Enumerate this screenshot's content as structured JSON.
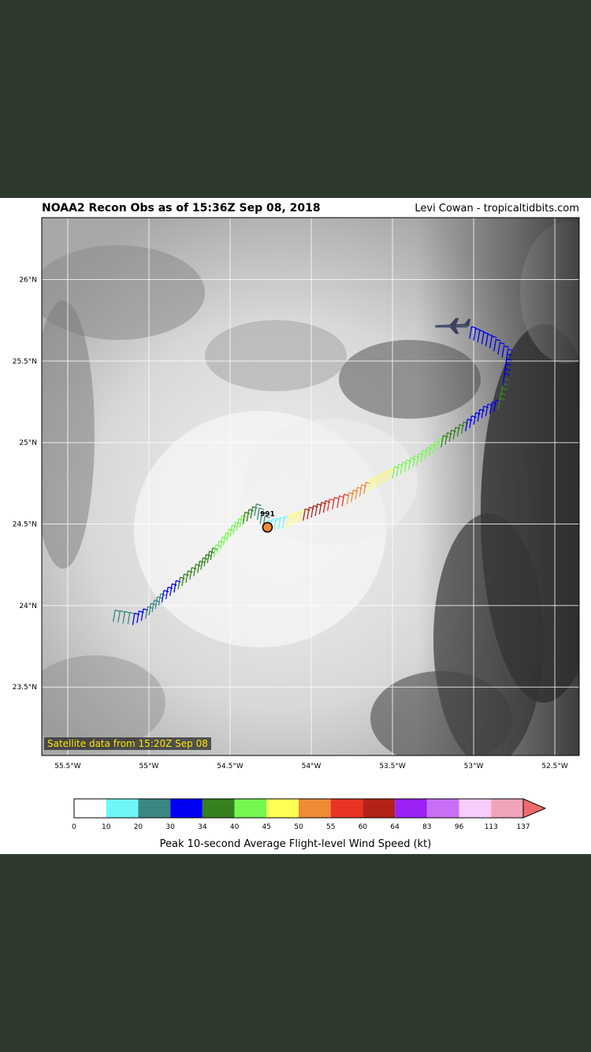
{
  "title": "NOAA2 Recon Obs as of 15:36Z Sep 08, 2018",
  "credit": "Levi Cowan - tropicaltidbits.com",
  "satellite_note": "Satellite data from 15:20Z Sep 08",
  "pressure_label": "991",
  "lat_ticks": [
    "26°N",
    "25.5°N",
    "25°N",
    "24.5°N",
    "24°N",
    "23.5°N"
  ],
  "lon_ticks": [
    "55.5°W",
    "55°W",
    "54.5°W",
    "54°W",
    "53.5°W",
    "53°W",
    "52.5°W"
  ],
  "map": {
    "lon_range": [
      -55.66,
      -52.35
    ],
    "lat_range": [
      23.08,
      26.38
    ],
    "lat_values": [
      26.0,
      25.5,
      25.0,
      24.5,
      24.0,
      23.5
    ],
    "lon_values": [
      -55.5,
      -55.0,
      -54.5,
      -54.0,
      -53.5,
      -53.0,
      -52.5
    ],
    "center": {
      "lon": -54.27,
      "lat": 24.48
    },
    "aircraft": {
      "lon": -53.13,
      "lat": 25.72,
      "icon": "airplane-icon"
    },
    "flight_track": [
      {
        "lon": -55.22,
        "lat": 23.9,
        "kt": 20
      },
      {
        "lon": -55.1,
        "lat": 23.88,
        "kt": 30
      },
      {
        "lon": -55.02,
        "lat": 23.92,
        "kt": 25
      },
      {
        "lon": -54.92,
        "lat": 24.02,
        "kt": 30
      },
      {
        "lon": -54.82,
        "lat": 24.1,
        "kt": 34
      },
      {
        "lon": -54.7,
        "lat": 24.2,
        "kt": 34
      },
      {
        "lon": -54.6,
        "lat": 24.3,
        "kt": 40
      },
      {
        "lon": -54.5,
        "lat": 24.42,
        "kt": 40
      },
      {
        "lon": -54.42,
        "lat": 24.5,
        "kt": 34
      },
      {
        "lon": -54.35,
        "lat": 24.55,
        "kt": 20
      },
      {
        "lon": -54.28,
        "lat": 24.45,
        "kt": 10
      },
      {
        "lon": -54.15,
        "lat": 24.48,
        "kt": 45
      },
      {
        "lon": -54.05,
        "lat": 24.52,
        "kt": 60
      },
      {
        "lon": -53.9,
        "lat": 24.58,
        "kt": 55
      },
      {
        "lon": -53.78,
        "lat": 24.62,
        "kt": 50
      },
      {
        "lon": -53.65,
        "lat": 24.7,
        "kt": 45
      },
      {
        "lon": -53.5,
        "lat": 24.78,
        "kt": 40
      },
      {
        "lon": -53.35,
        "lat": 24.86,
        "kt": 40
      },
      {
        "lon": -53.2,
        "lat": 24.97,
        "kt": 34
      },
      {
        "lon": -53.05,
        "lat": 25.07,
        "kt": 30
      },
      {
        "lon": -52.95,
        "lat": 25.15,
        "kt": 30
      },
      {
        "lon": -52.85,
        "lat": 25.2,
        "kt": 34
      },
      {
        "lon": -52.82,
        "lat": 25.35,
        "kt": 30
      },
      {
        "lon": -52.8,
        "lat": 25.5,
        "kt": 30
      },
      {
        "lon": -52.9,
        "lat": 25.58,
        "kt": 30
      },
      {
        "lon": -53.05,
        "lat": 25.65,
        "kt": 30
      }
    ]
  },
  "colorbar": {
    "caption": "Peak 10-second Average Flight-level Wind Speed (kt)",
    "ticks": [
      "0",
      "10",
      "20",
      "30",
      "34",
      "40",
      "45",
      "50",
      "55",
      "60",
      "64",
      "83",
      "96",
      "113",
      "137"
    ],
    "colors": [
      "#ffffff",
      "#6ff7f7",
      "#3a8784",
      "#0000f5",
      "#37801f",
      "#74f84f",
      "#ffff55",
      "#ef8b35",
      "#e93325",
      "#b32218",
      "#9a22f3",
      "#c86ff6",
      "#f8cdfb",
      "#f1a4b9"
    ],
    "extend_color": "#ef6b6b"
  }
}
